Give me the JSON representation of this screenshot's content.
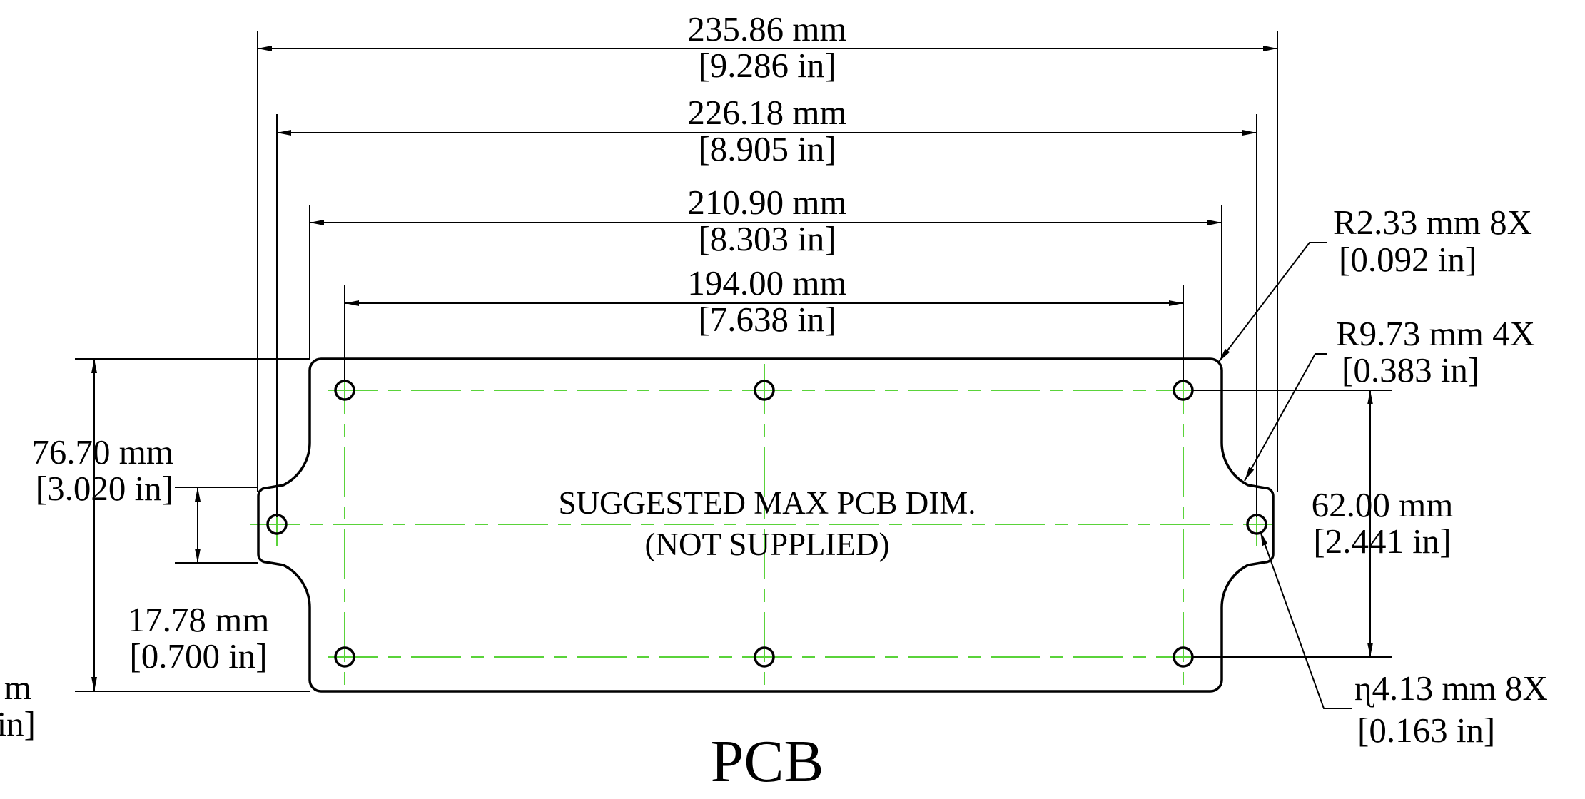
{
  "drawing": {
    "title": "PCB",
    "pcb_note_line1": "SUGGESTED MAX PCB DIM.",
    "pcb_note_line2": "(NOT SUPPLIED)",
    "colors": {
      "outline": "#000000",
      "centerline": "#5ad33a",
      "background": "#ffffff"
    }
  },
  "dimensions": {
    "overall_width": {
      "mm": "235.86 mm",
      "in": "[9.286 in]"
    },
    "tab_hole_spacing": {
      "mm": "226.18 mm",
      "in": "[8.905 in]"
    },
    "body_width": {
      "mm": "210.90 mm",
      "in": "[8.303 in]"
    },
    "hole_spacing": {
      "mm": "194.00 mm",
      "in": "[7.638 in]"
    },
    "corner_radius": {
      "mm": "R2.33 mm 8X",
      "in": "[0.092 in]"
    },
    "notch_radius": {
      "mm": "R9.73 mm 4X",
      "in": "[0.383 in]"
    },
    "overall_height": {
      "mm": "76.70 mm",
      "in": "[3.020 in]"
    },
    "hole_vertical_spacing": {
      "mm": "62.00 mm",
      "in": "[2.441 in]"
    },
    "tab_height": {
      "mm": "17.78 mm",
      "in": "[0.700 in]"
    },
    "hole_diameter": {
      "mm": "ɳ4.13 mm 8X",
      "in": "[0.163 in]"
    },
    "cut_off_left": {
      "mm": "m",
      "in": "in]"
    }
  }
}
